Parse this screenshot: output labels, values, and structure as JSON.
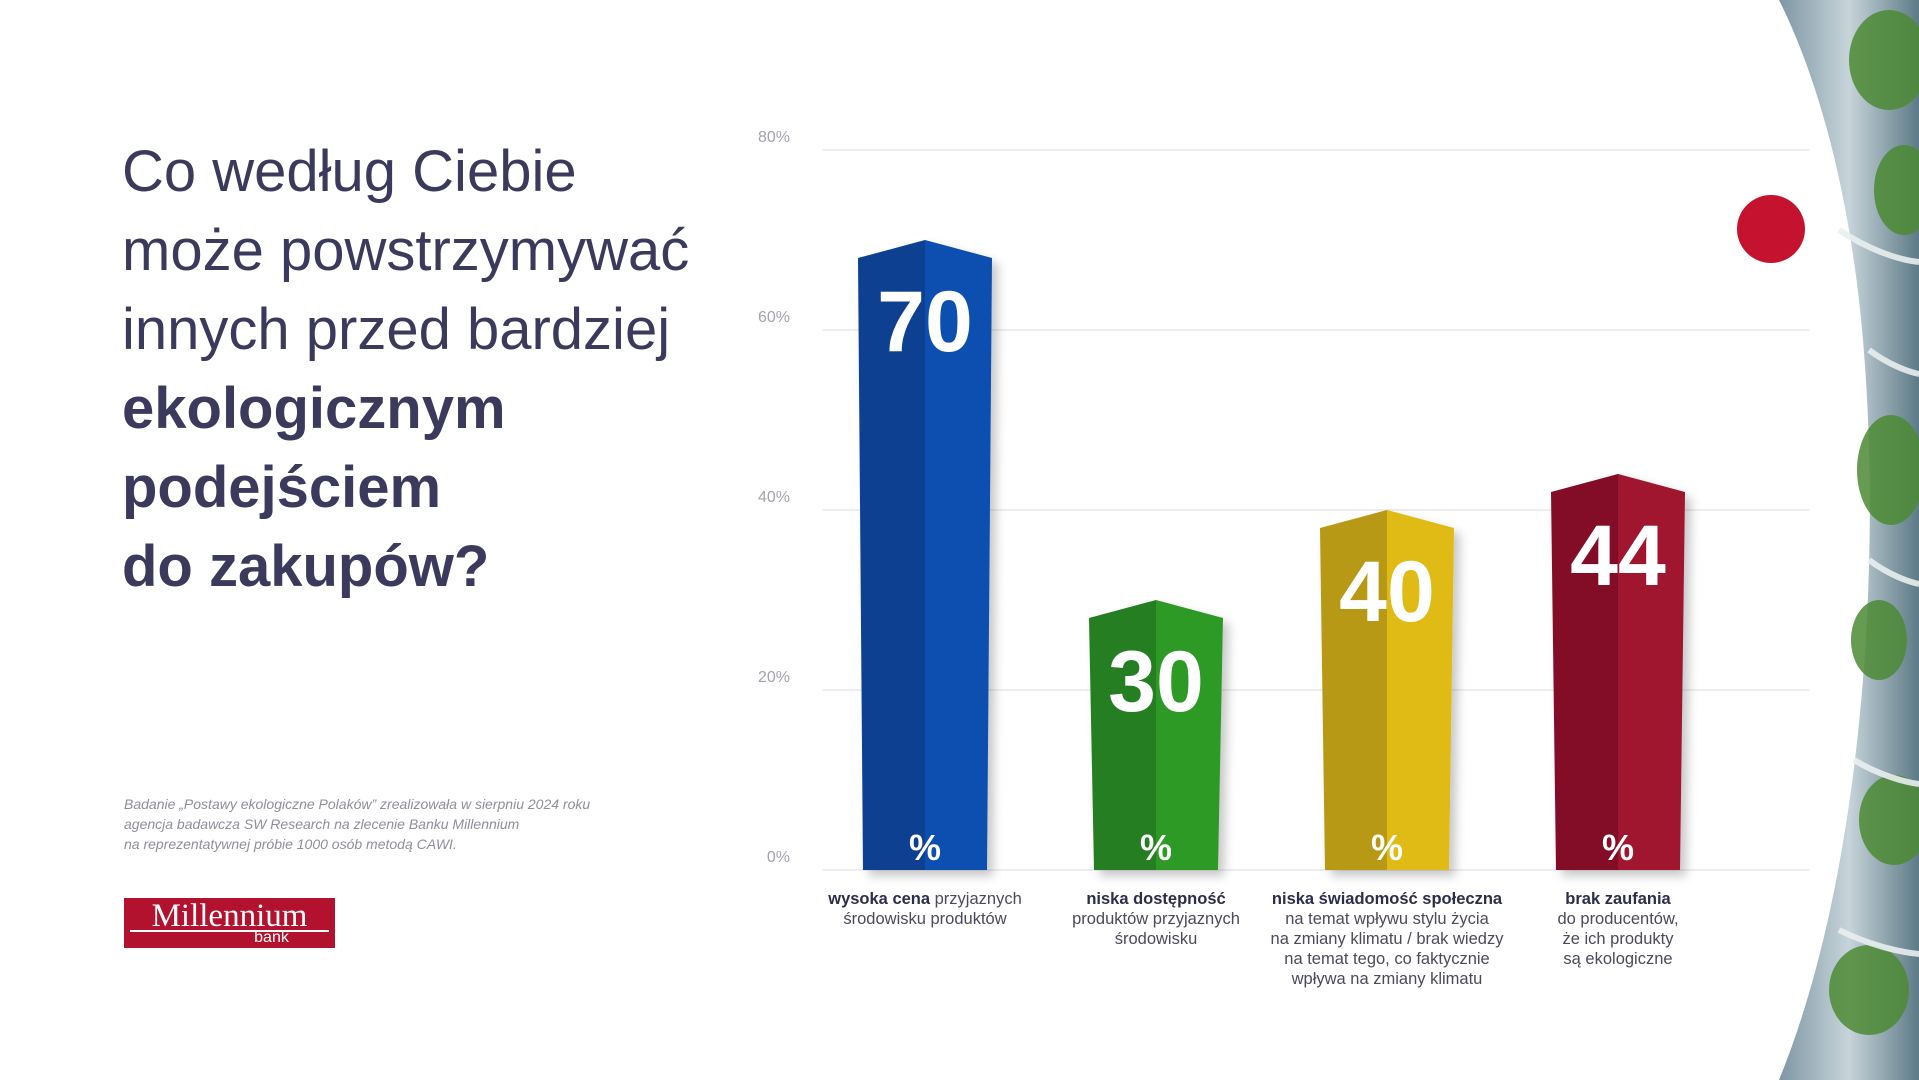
{
  "title": {
    "line1": "Co według Ciebie",
    "line2": "może powstrzymywać",
    "line3": "innych przed bardziej",
    "line4": "ekologicznym",
    "line5": "podejściem",
    "line6": "do zakupów?"
  },
  "note": {
    "line1": "Badanie „Postawy ekologiczne Polaków” zrealizowała w sierpniu 2024 roku",
    "line2": "agencja badawcza SW Research na zlecenie Banku Millennium",
    "line3": "na reprezentatywnej próbie 1000 osób metodą CAWI."
  },
  "logo": {
    "name": "Millennium",
    "sub": "bank",
    "color": "#b3122f"
  },
  "decor": {
    "accent_dot_color": "#c4122f"
  },
  "chart_data": {
    "type": "bar",
    "ylim": [
      0,
      80
    ],
    "yticks": [
      "0%",
      "20%",
      "40%",
      "60%",
      "80%"
    ],
    "grid": true,
    "unit_label": "%",
    "categories": [
      {
        "bold": "wysoka cena",
        "lines": [
          "przyjaznych",
          "środowisku produktów"
        ]
      },
      {
        "bold": "niska dostępność",
        "lines": [
          "produktów przyjaznych",
          "środowisku"
        ]
      },
      {
        "bold": "niska świadomość społeczna",
        "lines": [
          "na temat wpływu stylu życia",
          "na zmiany klimatu / brak wiedzy",
          "na temat tego, co faktycznie",
          "wpływa na zmiany klimatu"
        ]
      },
      {
        "bold": "brak zaufania",
        "lines": [
          "do producentów,",
          "że ich produkty",
          "są ekologiczne"
        ]
      }
    ],
    "values": [
      70,
      30,
      40,
      44
    ],
    "colors": [
      "#0a4fb0",
      "#2f9a28",
      "#e0bb16",
      "#a0122f"
    ]
  }
}
